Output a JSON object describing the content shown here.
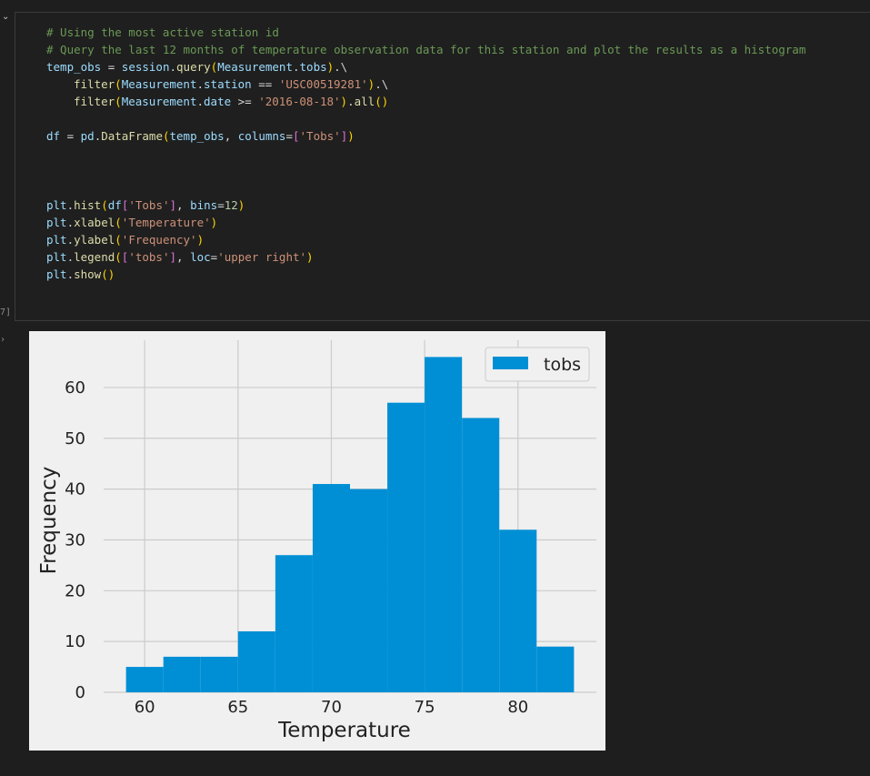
{
  "gutter": {
    "collapse_icon": "chevron-down-icon",
    "execution_count": "7]",
    "output_icon": "chevron-right-icon"
  },
  "code": {
    "comment1": "# Using the most active station id",
    "comment2": "# Query the last 12 months of temperature observation data for this station and plot the results as a histogram",
    "line3": [
      "temp_obs",
      " = ",
      "session",
      ".",
      "query",
      "(",
      "Measurement",
      ".",
      "tobs",
      ")",
      ".\\"
    ],
    "line4": [
      "filter",
      "(",
      "Measurement",
      ".",
      "station",
      " == ",
      "'USC00519281'",
      ")",
      ".\\"
    ],
    "line5": [
      "filter",
      "(",
      "Measurement",
      ".",
      "date",
      " >= ",
      "'2016-08-18'",
      ")",
      ".",
      "all",
      "()"
    ],
    "line6": [
      "df",
      " = ",
      "pd",
      ".",
      "DataFrame",
      "(",
      "temp_obs",
      ", ",
      "columns",
      "=",
      "[",
      "'Tobs'",
      "]",
      ")"
    ],
    "line7": [
      "plt",
      ".",
      "hist",
      "(",
      "df",
      "[",
      "'Tobs'",
      "]",
      ", ",
      "bins",
      "=",
      "12",
      ")"
    ],
    "line8": [
      "plt",
      ".",
      "xlabel",
      "(",
      "'Temperature'",
      ")"
    ],
    "line9": [
      "plt",
      ".",
      "ylabel",
      "(",
      "'Frequency'",
      ")"
    ],
    "line10": [
      "plt",
      ".",
      "legend",
      "(",
      "[",
      "'tobs'",
      "]",
      ", ",
      "loc",
      "=",
      "'upper right'",
      ")"
    ],
    "line11": [
      "plt",
      ".",
      "show",
      "()"
    ]
  },
  "chart_data": {
    "type": "bar",
    "xlabel": "Temperature",
    "ylabel": "Frequency",
    "legend": [
      "tobs"
    ],
    "legend_placement": "upper right",
    "bin_edges": [
      59,
      61,
      63,
      65,
      67,
      69,
      71,
      73,
      75,
      77,
      79,
      81,
      83
    ],
    "values": [
      5,
      7,
      7,
      12,
      27,
      41,
      40,
      57,
      66,
      54,
      32,
      9
    ],
    "xticks": [
      "60",
      "65",
      "70",
      "75",
      "80"
    ],
    "yticks": [
      "0",
      "10",
      "20",
      "30",
      "40",
      "50",
      "60"
    ],
    "xlim": [
      57.8,
      84.2
    ],
    "ylim": [
      0,
      69.3
    ],
    "bar_color": "#008fd5",
    "background": "#f0f0f0",
    "grid": true
  }
}
